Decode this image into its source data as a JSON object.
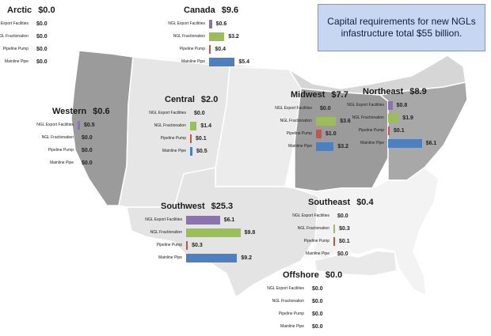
{
  "callout": {
    "text": "Capital requirements for new NGLs infastructure total $55 billion."
  },
  "colors": {
    "ngl_export_facilities": "#8a72b3",
    "ngl_fractionation": "#9cbe59",
    "pipeline_pump": "#c8524e",
    "mainline_pipe": "#4e80c0"
  },
  "series_names": [
    "NGL Export Facilities",
    "NGL Fractionation",
    "Pipeline Pump",
    "Mainline Pipe"
  ],
  "regions": [
    {
      "key": "arctic",
      "name": "Arctic",
      "total": "$0.0",
      "values": [
        0.0,
        0.0,
        0.0,
        0.0
      ],
      "value_labels": [
        "$0.0",
        "$0.0",
        "$0.0",
        "$0.0"
      ]
    },
    {
      "key": "canada",
      "name": "Canada",
      "total": "$9.6",
      "values": [
        0.6,
        3.2,
        0.4,
        5.4
      ],
      "value_labels": [
        "$0.6",
        "$3.2",
        "$0.4",
        "$5.4"
      ]
    },
    {
      "key": "western",
      "name": "Western",
      "total": "$0.6",
      "values": [
        0.5,
        0.0,
        0.0,
        0.0
      ],
      "value_labels": [
        "$0.5",
        "$0.0",
        "$0.0",
        "$0.0"
      ]
    },
    {
      "key": "central",
      "name": "Central",
      "total": "$2.0",
      "values": [
        0.0,
        1.4,
        0.1,
        0.5
      ],
      "value_labels": [
        "$0.0",
        "$1.4",
        "$0.1",
        "$0.5"
      ]
    },
    {
      "key": "midwest",
      "name": "Midwest",
      "total": "$7.7",
      "values": [
        0.0,
        3.6,
        1.0,
        3.2
      ],
      "value_labels": [
        "$0.0",
        "$3.6",
        "$1.0",
        "$3.2"
      ]
    },
    {
      "key": "northeast",
      "name": "Northeast",
      "total": "$8.9",
      "values": [
        0.8,
        1.9,
        0.1,
        6.1
      ],
      "value_labels": [
        "$0.8",
        "$1.9",
        "$0.1",
        "$6.1"
      ]
    },
    {
      "key": "southwest",
      "name": "Southwest",
      "total": "$25.3",
      "values": [
        6.1,
        9.8,
        0.3,
        9.2
      ],
      "value_labels": [
        "$6.1",
        "$9.8",
        "$0.3",
        "$9.2"
      ]
    },
    {
      "key": "southeast",
      "name": "Southeast",
      "total": "$0.4",
      "values": [
        0.0,
        0.3,
        0.1,
        0.0
      ],
      "value_labels": [
        "$0.0",
        "$0.3",
        "$0.1",
        "$0.0"
      ]
    },
    {
      "key": "offshore",
      "name": "Offshore",
      "total": "$0.0",
      "values": [
        0.0,
        0.0,
        0.0,
        0.0
      ],
      "value_labels": [
        "$0.0",
        "$0.0",
        "$0.0",
        "$0.0"
      ]
    }
  ]
}
